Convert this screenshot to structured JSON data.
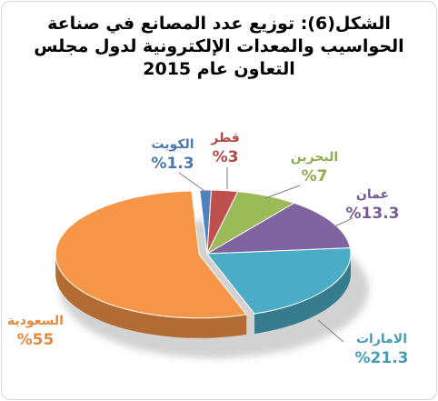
{
  "title_lines": [
    "الشكل(6): توزيع عدد المصانع في صناعة",
    "الحواسيب والمعدات الإلكترونية لدول مجلس",
    "التعاون عام 2015"
  ],
  "chart_data": {
    "type": "pie",
    "title": "الشكل(6): توزيع عدد المصانع في صناعة الحواسيب والمعدات الإلكترونية لدول مجلس التعاون عام 2015",
    "slices": [
      {
        "name": "الكويت",
        "value": 1.3,
        "label": "%1.3",
        "color": "#4f81bd"
      },
      {
        "name": "قطر",
        "value": 3,
        "label": "%3",
        "color": "#c0504d"
      },
      {
        "name": "البحرين",
        "value": 7,
        "label": "%7",
        "color": "#9bbb59"
      },
      {
        "name": "عمان",
        "value": 13.3,
        "label": "%13.3",
        "color": "#8064a2"
      },
      {
        "name": "الامارات",
        "value": 21.3,
        "label": "%21.3",
        "color": "#4bacc6"
      },
      {
        "name": "السعودية",
        "value": 55,
        "label": "%55",
        "color": "#f79646"
      }
    ],
    "legend": "none"
  }
}
